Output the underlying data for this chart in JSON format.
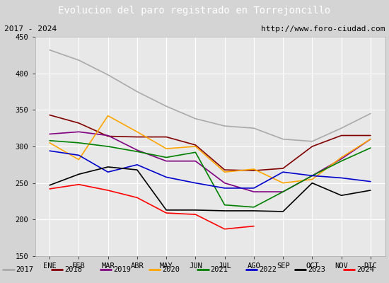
{
  "title": "Evolucion del paro registrado en Torrejoncillo",
  "subtitle_left": "2017 - 2024",
  "subtitle_right": "http://www.foro-ciudad.com",
  "months": [
    "ENE",
    "FEB",
    "MAR",
    "ABR",
    "MAY",
    "JUN",
    "JUL",
    "AGO",
    "SEP",
    "OCT",
    "NOV",
    "DIC"
  ],
  "series": {
    "2017": {
      "color": "#aaaaaa",
      "data": [
        432,
        418,
        398,
        375,
        355,
        338,
        328,
        325,
        310,
        307,
        325,
        345
      ]
    },
    "2018": {
      "color": "#800000",
      "data": [
        343,
        332,
        314,
        313,
        313,
        302,
        268,
        267,
        270,
        300,
        315,
        315
      ]
    },
    "2019": {
      "color": "#800080",
      "data": [
        317,
        320,
        315,
        295,
        280,
        280,
        250,
        238,
        238,
        260,
        283,
        310
      ]
    },
    "2020": {
      "color": "#ffa500",
      "data": [
        305,
        282,
        342,
        320,
        297,
        300,
        265,
        269,
        250,
        255,
        285,
        310
      ]
    },
    "2021": {
      "color": "#008000",
      "data": [
        308,
        305,
        300,
        293,
        285,
        292,
        220,
        217,
        238,
        260,
        280,
        298
      ]
    },
    "2022": {
      "color": "#0000cd",
      "data": [
        294,
        288,
        265,
        275,
        258,
        250,
        243,
        243,
        265,
        260,
        257,
        252
      ]
    },
    "2023": {
      "color": "#000000",
      "data": [
        247,
        262,
        272,
        268,
        213,
        213,
        212,
        212,
        211,
        250,
        233,
        240
      ]
    },
    "2024": {
      "color": "#ff0000",
      "data": [
        242,
        248,
        240,
        230,
        209,
        207,
        187,
        191,
        null,
        null,
        null,
        null
      ]
    }
  },
  "ylim": [
    150,
    450
  ],
  "yticks": [
    150,
    200,
    250,
    300,
    350,
    400,
    450
  ],
  "bg_color": "#d4d4d4",
  "plot_bg": "#e8e8e8",
  "title_bg": "#4f81bd",
  "title_color": "white",
  "header_bg": "#c8c8c8",
  "grid_color": "white",
  "legend_bg": "#d4d4d4"
}
